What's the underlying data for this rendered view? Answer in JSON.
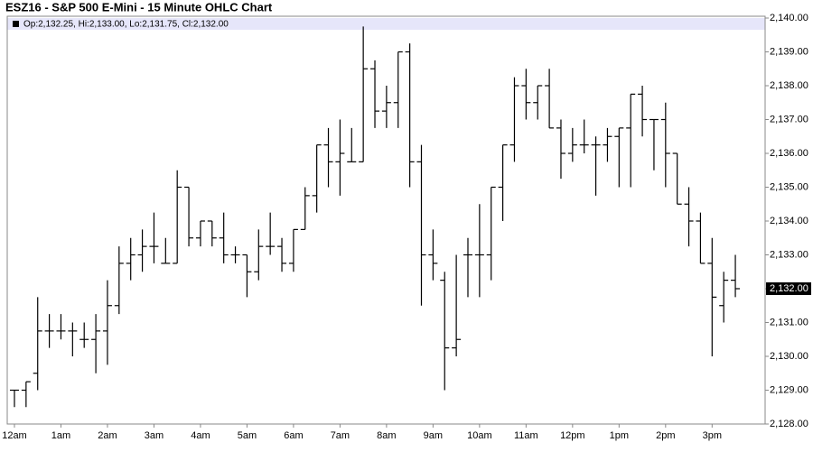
{
  "chart_data": {
    "type": "ohlc",
    "title": "ESZ16 - S&P 500 E-Mini - 15 Minute OHLC Chart",
    "ohlc_label": "Op:2,132.25, Hi:2,133.00, Lo:2,131.75, Cl:2,132.00",
    "color": "#000000",
    "grid": false,
    "x": [
      0,
      0.25,
      0.5,
      0.75,
      1,
      1.25,
      1.5,
      1.75,
      2,
      2.25,
      2.5,
      2.75,
      3,
      3.25,
      3.5,
      3.75,
      4,
      4.25,
      4.5,
      4.75,
      5,
      5.25,
      5.5,
      5.75,
      6,
      6.25,
      6.5,
      6.75,
      7,
      7.25,
      7.5,
      7.75,
      8,
      8.25,
      8.5,
      8.75,
      9,
      9.25,
      9.5,
      9.75,
      10,
      10.25,
      10.5,
      10.75,
      11,
      11.25,
      11.5,
      11.75,
      12,
      12.25,
      12.5,
      12.75,
      13,
      13.25,
      13.5,
      13.75,
      14,
      14.25,
      14.5,
      14.75,
      15,
      15.25,
      15.5
    ],
    "open": [
      2129.0,
      2129.0,
      2129.5,
      2130.75,
      2130.75,
      2130.75,
      2130.5,
      2130.5,
      2130.75,
      2131.5,
      2132.75,
      2133.0,
      2133.25,
      2132.75,
      2132.75,
      2135.0,
      2133.5,
      2134.0,
      2133.5,
      2133.0,
      2133.0,
      2132.5,
      2133.25,
      2133.25,
      2132.75,
      2133.75,
      2134.75,
      2136.25,
      2135.75,
      2135.75,
      2135.75,
      2138.5,
      2137.25,
      2137.5,
      2139.0,
      2135.75,
      2133.0,
      2132.25,
      2130.25,
      2133.0,
      2133.0,
      2133.0,
      2135.0,
      2136.25,
      2138.0,
      2137.5,
      2138.0,
      2136.75,
      2136.0,
      2136.25,
      2136.25,
      2136.25,
      2136.5,
      2136.75,
      2137.75,
      2137.0,
      2137.0,
      2136.0,
      2134.5,
      2134.0,
      2132.75,
      2131.5,
      2132.25
    ],
    "high": [
      2129.0,
      2129.25,
      2131.75,
      2131.25,
      2131.25,
      2131.0,
      2131.0,
      2131.25,
      2132.25,
      2133.25,
      2133.5,
      2133.75,
      2134.25,
      2133.5,
      2135.5,
      2135.0,
      2134.0,
      2134.0,
      2134.25,
      2133.25,
      2133.0,
      2133.75,
      2134.25,
      2133.5,
      2133.75,
      2135.0,
      2136.25,
      2136.75,
      2137.0,
      2136.75,
      2139.75,
      2138.75,
      2138.0,
      2139.0,
      2139.25,
      2136.25,
      2133.75,
      2132.5,
      2133.0,
      2133.5,
      2134.5,
      2135.0,
      2136.25,
      2138.25,
      2138.5,
      2138.0,
      2138.5,
      2137.0,
      2136.75,
      2137.0,
      2136.5,
      2136.75,
      2136.75,
      2137.75,
      2138.0,
      2137.0,
      2137.5,
      2136.0,
      2135.0,
      2134.25,
      2133.5,
      2132.5,
      2133.0
    ],
    "low": [
      2128.5,
      2128.5,
      2129.0,
      2130.25,
      2130.5,
      2130.0,
      2130.25,
      2129.5,
      2129.75,
      2131.25,
      2132.25,
      2132.5,
      2132.75,
      2132.75,
      2132.75,
      2133.25,
      2133.25,
      2133.25,
      2132.75,
      2132.75,
      2131.75,
      2132.25,
      2133.0,
      2132.5,
      2132.5,
      2133.75,
      2134.25,
      2135.0,
      2134.75,
      2135.75,
      2135.75,
      2136.75,
      2136.75,
      2136.75,
      2135.0,
      2131.5,
      2132.25,
      2129.0,
      2130.0,
      2131.75,
      2131.75,
      2132.25,
      2134.0,
      2135.75,
      2137.0,
      2137.0,
      2136.75,
      2135.25,
      2135.75,
      2136.0,
      2134.75,
      2135.75,
      2135.0,
      2135.0,
      2136.5,
      2135.5,
      2135.0,
      2134.5,
      2133.25,
      2132.75,
      2130.0,
      2131.0,
      2131.75
    ],
    "close": [
      2129.0,
      2129.25,
      2130.75,
      2130.75,
      2130.75,
      2130.75,
      2130.5,
      2130.75,
      2131.5,
      2132.75,
      2133.0,
      2133.25,
      2133.25,
      2132.75,
      2135.0,
      2133.5,
      2134.0,
      2133.5,
      2133.0,
      2133.0,
      2132.5,
      2133.25,
      2133.25,
      2132.75,
      2133.75,
      2134.75,
      2136.25,
      2135.75,
      2136.0,
      2135.75,
      2138.5,
      2137.25,
      2137.5,
      2139.0,
      2135.75,
      2133.0,
      2132.75,
      2130.25,
      2130.5,
      2133.0,
      2133.0,
      2135.0,
      2136.25,
      2138.0,
      2137.5,
      2138.0,
      2136.75,
      2136.0,
      2136.25,
      2136.25,
      2136.25,
      2136.5,
      2136.75,
      2137.75,
      2137.0,
      2137.0,
      2136.0,
      2134.5,
      2134.0,
      2132.75,
      2131.75,
      2132.25,
      2132.0
    ],
    "xlim": [
      -0.155,
      16.14
    ],
    "xticks": [
      {
        "value": 0,
        "label": "12am"
      },
      {
        "value": 1,
        "label": "1am"
      },
      {
        "value": 2,
        "label": "2am"
      },
      {
        "value": 3,
        "label": "3am"
      },
      {
        "value": 4,
        "label": "4am"
      },
      {
        "value": 5,
        "label": "5am"
      },
      {
        "value": 6,
        "label": "6am"
      },
      {
        "value": 7,
        "label": "7am"
      },
      {
        "value": 8,
        "label": "8am"
      },
      {
        "value": 9,
        "label": "9am"
      },
      {
        "value": 10,
        "label": "10am"
      },
      {
        "value": 11,
        "label": "11am"
      },
      {
        "value": 12,
        "label": "12pm"
      },
      {
        "value": 13,
        "label": "1pm"
      },
      {
        "value": 14,
        "label": "2pm"
      },
      {
        "value": 15,
        "label": "3pm"
      }
    ],
    "ylim": [
      2128,
      2140
    ],
    "yticks": [
      {
        "value": 2128,
        "label": "2,128.00"
      },
      {
        "value": 2129,
        "label": "2,129.00"
      },
      {
        "value": 2130,
        "label": "2,130.00"
      },
      {
        "value": 2131,
        "label": "2,131.00"
      },
      {
        "value": 2132,
        "label": "2,132.00"
      },
      {
        "value": 2133,
        "label": "2,133.00"
      },
      {
        "value": 2134,
        "label": "2,134.00"
      },
      {
        "value": 2135,
        "label": "2,135.00"
      },
      {
        "value": 2136,
        "label": "2,136.00"
      },
      {
        "value": 2137,
        "label": "2,137.00"
      },
      {
        "value": 2138,
        "label": "2,138.00"
      },
      {
        "value": 2139,
        "label": "2,139.00"
      },
      {
        "value": 2140,
        "label": "2,140.00"
      }
    ],
    "last_price": {
      "value": 2132,
      "label": "2,132.00"
    }
  }
}
